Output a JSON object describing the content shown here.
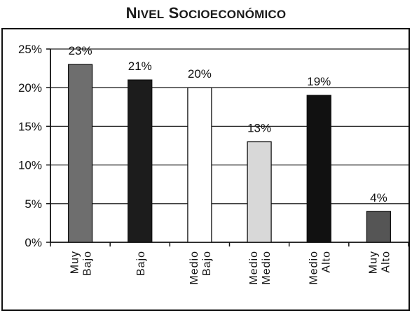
{
  "chart_data": {
    "type": "bar",
    "title": "Nivel Socioeconómico",
    "xlabel": "",
    "ylabel": "",
    "categories": [
      [
        "Muy",
        "Bajo"
      ],
      [
        "Bajo"
      ],
      [
        "Medio",
        "Bajo"
      ],
      [
        "Medio",
        "Medio"
      ],
      [
        "Medio",
        "Alto"
      ],
      [
        "Muy",
        "Alto"
      ]
    ],
    "values": [
      23,
      21,
      20,
      13,
      19,
      4
    ],
    "value_labels": [
      "23%",
      "21%",
      "20%",
      "13%",
      "19%",
      "4%"
    ],
    "ylim": [
      0,
      25
    ],
    "yticks": [
      0,
      5,
      10,
      15,
      20,
      25
    ],
    "ytick_labels": [
      "0%",
      "5%",
      "10%",
      "15%",
      "20%",
      "25%"
    ],
    "grid": true,
    "legend": "none",
    "bar_colors": [
      "#6e6e6e",
      "#1c1c1c",
      "#ffffff",
      "#d8d8d8",
      "#111111",
      "#555555"
    ]
  }
}
